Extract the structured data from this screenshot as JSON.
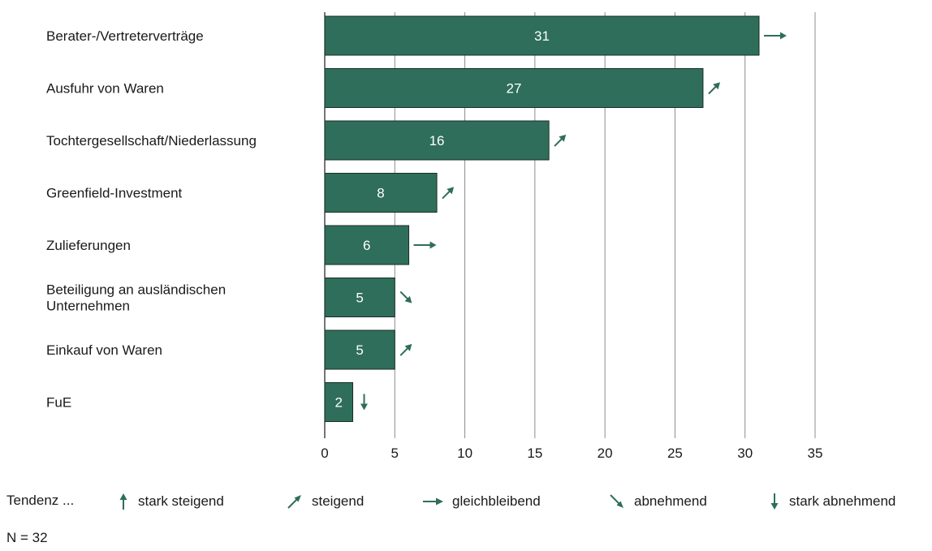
{
  "chart_data": {
    "type": "bar",
    "orientation": "horizontal",
    "categories": [
      "Berater-/Vertreterverträge",
      "Ausfuhr von Waren",
      "Tochtergesellschaft/Niederlassung",
      "Greenfield-Investment",
      "Zulieferungen",
      "Beteiligung an ausländischen Unternehmen",
      "Einkauf von Waren",
      "FuE"
    ],
    "values": [
      31,
      27,
      16,
      8,
      6,
      5,
      5,
      2
    ],
    "trends": [
      "gleichbleibend",
      "steigend",
      "steigend",
      "steigend",
      "gleichbleibend",
      "abnehmend",
      "steigend",
      "stark abnehmend"
    ],
    "xlim": [
      0,
      35
    ],
    "xticks": [
      0,
      5,
      10,
      15,
      20,
      25,
      30,
      35
    ],
    "grid": true,
    "bar_color": "#2e6e5a"
  },
  "legend": {
    "title": "Tendenz ...",
    "items": [
      {
        "key": "stark steigend",
        "label": "stark steigend"
      },
      {
        "key": "steigend",
        "label": "steigend"
      },
      {
        "key": "gleichbleibend",
        "label": "gleichbleibend"
      },
      {
        "key": "abnehmend",
        "label": "abnehmend"
      },
      {
        "key": "stark abnehmend",
        "label": "stark abnehmend"
      }
    ]
  },
  "note": "N = 32"
}
